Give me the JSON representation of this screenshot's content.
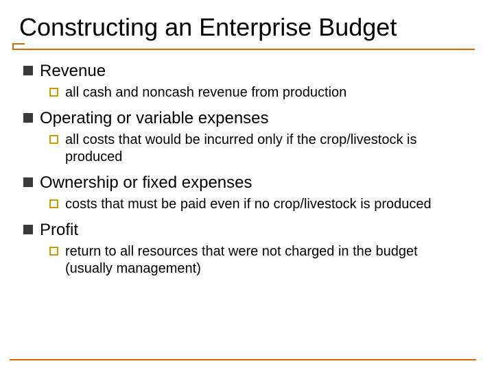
{
  "colors": {
    "rule": "#d36900",
    "l1_bullet": "#3a3a3a",
    "l2_bullet_border": "#cf9a00",
    "text": "#000000",
    "background": "#ffffff"
  },
  "typography": {
    "title_font": "Comic Sans MS",
    "title_size_pt": 36,
    "l1_size_pt": 24,
    "l2_size_pt": 20
  },
  "title": "Constructing an Enterprise Budget",
  "items": [
    {
      "label": "Revenue",
      "sub": "all cash and noncash revenue from production"
    },
    {
      "label": "Operating or variable expenses",
      "sub": "all costs that would be incurred only if the crop/livestock is produced"
    },
    {
      "label": "Ownership or fixed expenses",
      "sub": "costs that must be paid even if no crop/livestock is produced"
    },
    {
      "label": "Profit",
      "sub": "return to all resources that were not charged in the budget (usually management)"
    }
  ]
}
